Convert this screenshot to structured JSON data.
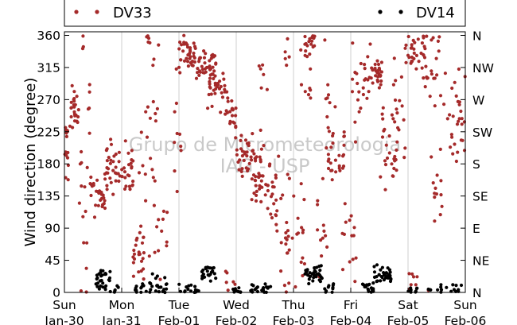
{
  "chart_data": {
    "type": "scatter",
    "ylabel": "Wind direction (degree)",
    "ylim": [
      0,
      365
    ],
    "yticks": [
      0,
      45,
      90,
      135,
      180,
      225,
      270,
      315,
      360
    ],
    "y2ticks": [
      {
        "value": 0,
        "label": "N"
      },
      {
        "value": 45,
        "label": "NE"
      },
      {
        "value": 90,
        "label": "E"
      },
      {
        "value": 135,
        "label": "SE"
      },
      {
        "value": 180,
        "label": "S"
      },
      {
        "value": 225,
        "label": "SW"
      },
      {
        "value": 270,
        "label": "W"
      },
      {
        "value": 315,
        "label": "NW"
      },
      {
        "value": 360,
        "label": "N"
      }
    ],
    "xlim": [
      0,
      7
    ],
    "xunit": "days since Jan-30",
    "xticks": [
      {
        "day": "Sun",
        "date": "Jan-30"
      },
      {
        "day": "Mon",
        "date": "Jan-31"
      },
      {
        "day": "Tue",
        "date": "Feb-01"
      },
      {
        "day": "Wed",
        "date": "Feb-02"
      },
      {
        "day": "Thu",
        "date": "Feb-03"
      },
      {
        "day": "Fri",
        "date": "Feb-04"
      },
      {
        "day": "Sat",
        "date": "Feb-05"
      },
      {
        "day": "Sun",
        "date": "Feb-06"
      }
    ],
    "grid": "vertical",
    "legend_placement": "top",
    "watermark": [
      "Grupo de Micrometeorologia",
      "IAG - USP"
    ],
    "series": [
      {
        "name": "DV33",
        "color": "#a52a2a",
        "clusters": [
          [
            0.0,
            0.08,
            200,
            25,
            14
          ],
          [
            0.08,
            0.25,
            255,
            15,
            24
          ],
          [
            0.25,
            0.4,
            90,
            60,
            14
          ],
          [
            0.4,
            0.45,
            290,
            30,
            5
          ],
          [
            0.45,
            0.75,
            140,
            15,
            30
          ],
          [
            0.7,
            0.95,
            175,
            18,
            26
          ],
          [
            0.95,
            1.2,
            165,
            20,
            26
          ],
          [
            1.2,
            1.4,
            65,
            20,
            22
          ],
          [
            1.3,
            1.6,
            140,
            40,
            14
          ],
          [
            1.4,
            1.65,
            280,
            60,
            12
          ],
          [
            1.6,
            1.8,
            80,
            40,
            10
          ],
          [
            1.85,
            2.05,
            220,
            80,
            10
          ],
          [
            2.0,
            2.3,
            335,
            12,
            38
          ],
          [
            2.3,
            2.65,
            318,
            12,
            36
          ],
          [
            2.5,
            2.8,
            290,
            15,
            32
          ],
          [
            2.8,
            3.0,
            255,
            15,
            22
          ],
          [
            3.0,
            3.3,
            195,
            15,
            26
          ],
          [
            3.1,
            3.5,
            170,
            20,
            24
          ],
          [
            3.3,
            3.7,
            150,
            15,
            28
          ],
          [
            3.4,
            3.55,
            290,
            50,
            8
          ],
          [
            3.6,
            3.9,
            90,
            45,
            24
          ],
          [
            3.8,
            3.95,
            340,
            15,
            5
          ],
          [
            3.9,
            4.2,
            75,
            40,
            20
          ],
          [
            4.1,
            4.3,
            315,
            40,
            16
          ],
          [
            4.25,
            4.4,
            350,
            6,
            10
          ],
          [
            4.4,
            4.6,
            65,
            30,
            12
          ],
          [
            4.5,
            4.7,
            230,
            50,
            14
          ],
          [
            4.6,
            4.9,
            185,
            30,
            24
          ],
          [
            4.85,
            5.1,
            60,
            30,
            14
          ],
          [
            5.0,
            5.3,
            295,
            40,
            16
          ],
          [
            5.2,
            5.55,
            310,
            15,
            36
          ],
          [
            5.5,
            5.8,
            200,
            30,
            22
          ],
          [
            5.7,
            5.95,
            250,
            35,
            20
          ],
          [
            5.95,
            6.3,
            335,
            15,
            30
          ],
          [
            6.25,
            6.55,
            320,
            25,
            22
          ],
          [
            6.4,
            6.6,
            140,
            20,
            12
          ],
          [
            6.55,
            6.95,
            240,
            30,
            22
          ],
          [
            6.8,
            7.0,
            260,
            40,
            10
          ],
          [
            6.0,
            6.4,
            12,
            10,
            8
          ],
          [
            0.3,
            0.35,
            350,
            8,
            3
          ],
          [
            1.45,
            1.55,
            355,
            6,
            4
          ],
          [
            2.8,
            3.1,
            20,
            10,
            6
          ]
        ]
      },
      {
        "name": "DV14",
        "color": "#000000",
        "clusters": [
          [
            0.55,
            0.8,
            18,
            7,
            28
          ],
          [
            0.8,
            1.0,
            3,
            3,
            6
          ],
          [
            1.2,
            1.4,
            5,
            4,
            10
          ],
          [
            1.4,
            1.8,
            10,
            7,
            24
          ],
          [
            2.0,
            2.4,
            4,
            4,
            16
          ],
          [
            2.4,
            2.65,
            30,
            7,
            24
          ],
          [
            2.9,
            3.1,
            3,
            3,
            10
          ],
          [
            3.2,
            3.6,
            5,
            4,
            22
          ],
          [
            4.2,
            4.5,
            25,
            8,
            34
          ],
          [
            4.5,
            4.7,
            6,
            4,
            10
          ],
          [
            5.2,
            5.4,
            8,
            6,
            18
          ],
          [
            5.4,
            5.7,
            25,
            7,
            34
          ],
          [
            6.0,
            6.5,
            3,
            3,
            12
          ],
          [
            6.5,
            7.0,
            4,
            4,
            14
          ]
        ]
      }
    ]
  }
}
